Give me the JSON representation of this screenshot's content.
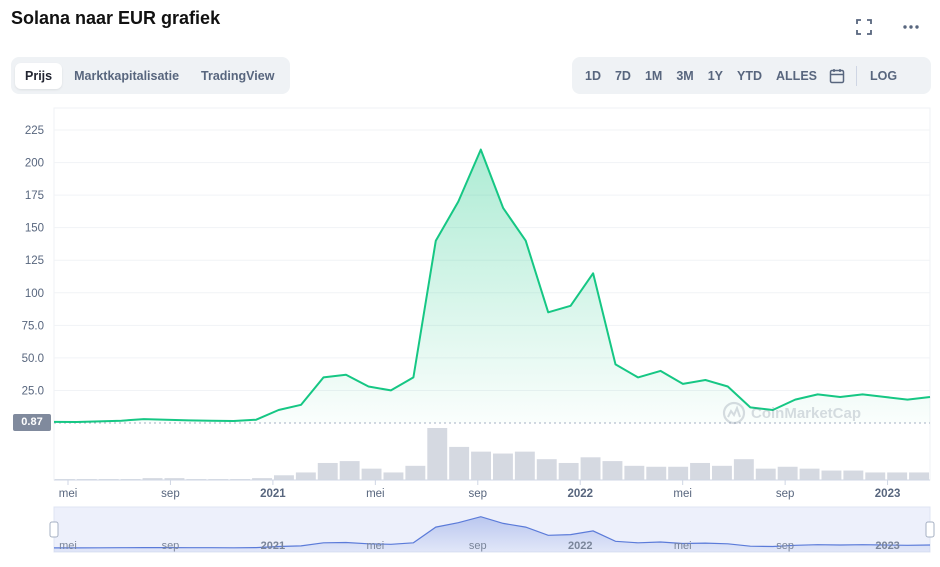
{
  "header": {
    "title": "Solana naar EUR grafiek",
    "fullscreen_icon": "expand-icon",
    "more_icon": "more-horizontal-icon"
  },
  "tabs": [
    {
      "label": "Prijs",
      "active": true
    },
    {
      "label": "Marktkapitalisatie",
      "active": false
    },
    {
      "label": "TradingView",
      "active": false
    }
  ],
  "ranges": [
    "1D",
    "7D",
    "1M",
    "3M",
    "1Y",
    "YTD",
    "ALLES"
  ],
  "calendar_icon": "calendar-icon",
  "log_label": "LOG",
  "watermark": "CoinMarketCap",
  "colors": {
    "line": "#16c784",
    "fill": "#16c784",
    "navigator": "#5b7bd9",
    "price_label_bg": "#808a9d"
  },
  "chart_data": {
    "type": "area",
    "yticks": [
      25.0,
      50.0,
      75.0,
      100,
      125,
      150,
      175,
      200,
      225
    ],
    "ylim": [
      0,
      235
    ],
    "xticks": [
      "mei",
      "sep",
      "2021",
      "mei",
      "sep",
      "2022",
      "mei",
      "sep",
      "2023"
    ],
    "current_price_label": "0.87",
    "grid": true,
    "x": [
      "2020-04",
      "2020-05",
      "2020-06",
      "2020-07",
      "2020-08",
      "2020-09",
      "2020-10",
      "2020-11",
      "2020-12",
      "2021-01",
      "2021-02",
      "2021-03",
      "2021-04",
      "2021-05",
      "2021-06",
      "2021-07",
      "2021-08",
      "2021-09",
      "2021-10",
      "2021-11",
      "2021-12",
      "2022-01",
      "2022-02",
      "2022-03",
      "2022-04",
      "2022-05",
      "2022-06",
      "2022-07",
      "2022-08",
      "2022-09",
      "2022-10",
      "2022-11",
      "2022-12",
      "2023-01",
      "2023-02",
      "2023-03",
      "2023-04",
      "2023-05",
      "2023-06",
      "2023-07"
    ],
    "series": [
      {
        "values": [
          0.87,
          0.8,
          1.2,
          1.8,
          3.0,
          2.5,
          2.0,
          1.8,
          1.5,
          2.5,
          10,
          14,
          35,
          37,
          28,
          25,
          35,
          140,
          170,
          210,
          165,
          140,
          85,
          90,
          115,
          45,
          35,
          40,
          30,
          33,
          28,
          12,
          10,
          18,
          22,
          20,
          22,
          20,
          18,
          20
        ]
      }
    ],
    "volume": [
      1,
      1,
      1,
      1,
      2,
      2,
      1,
      1,
      1,
      2,
      5,
      8,
      18,
      20,
      12,
      8,
      15,
      55,
      35,
      30,
      28,
      30,
      22,
      18,
      24,
      20,
      15,
      14,
      14,
      18,
      15,
      22,
      12,
      14,
      12,
      10,
      10,
      8,
      8,
      8
    ],
    "navigator": {
      "xticks": [
        "mei",
        "sep",
        "2021",
        "mei",
        "sep",
        "2022",
        "mei",
        "sep",
        "2023"
      ]
    }
  }
}
